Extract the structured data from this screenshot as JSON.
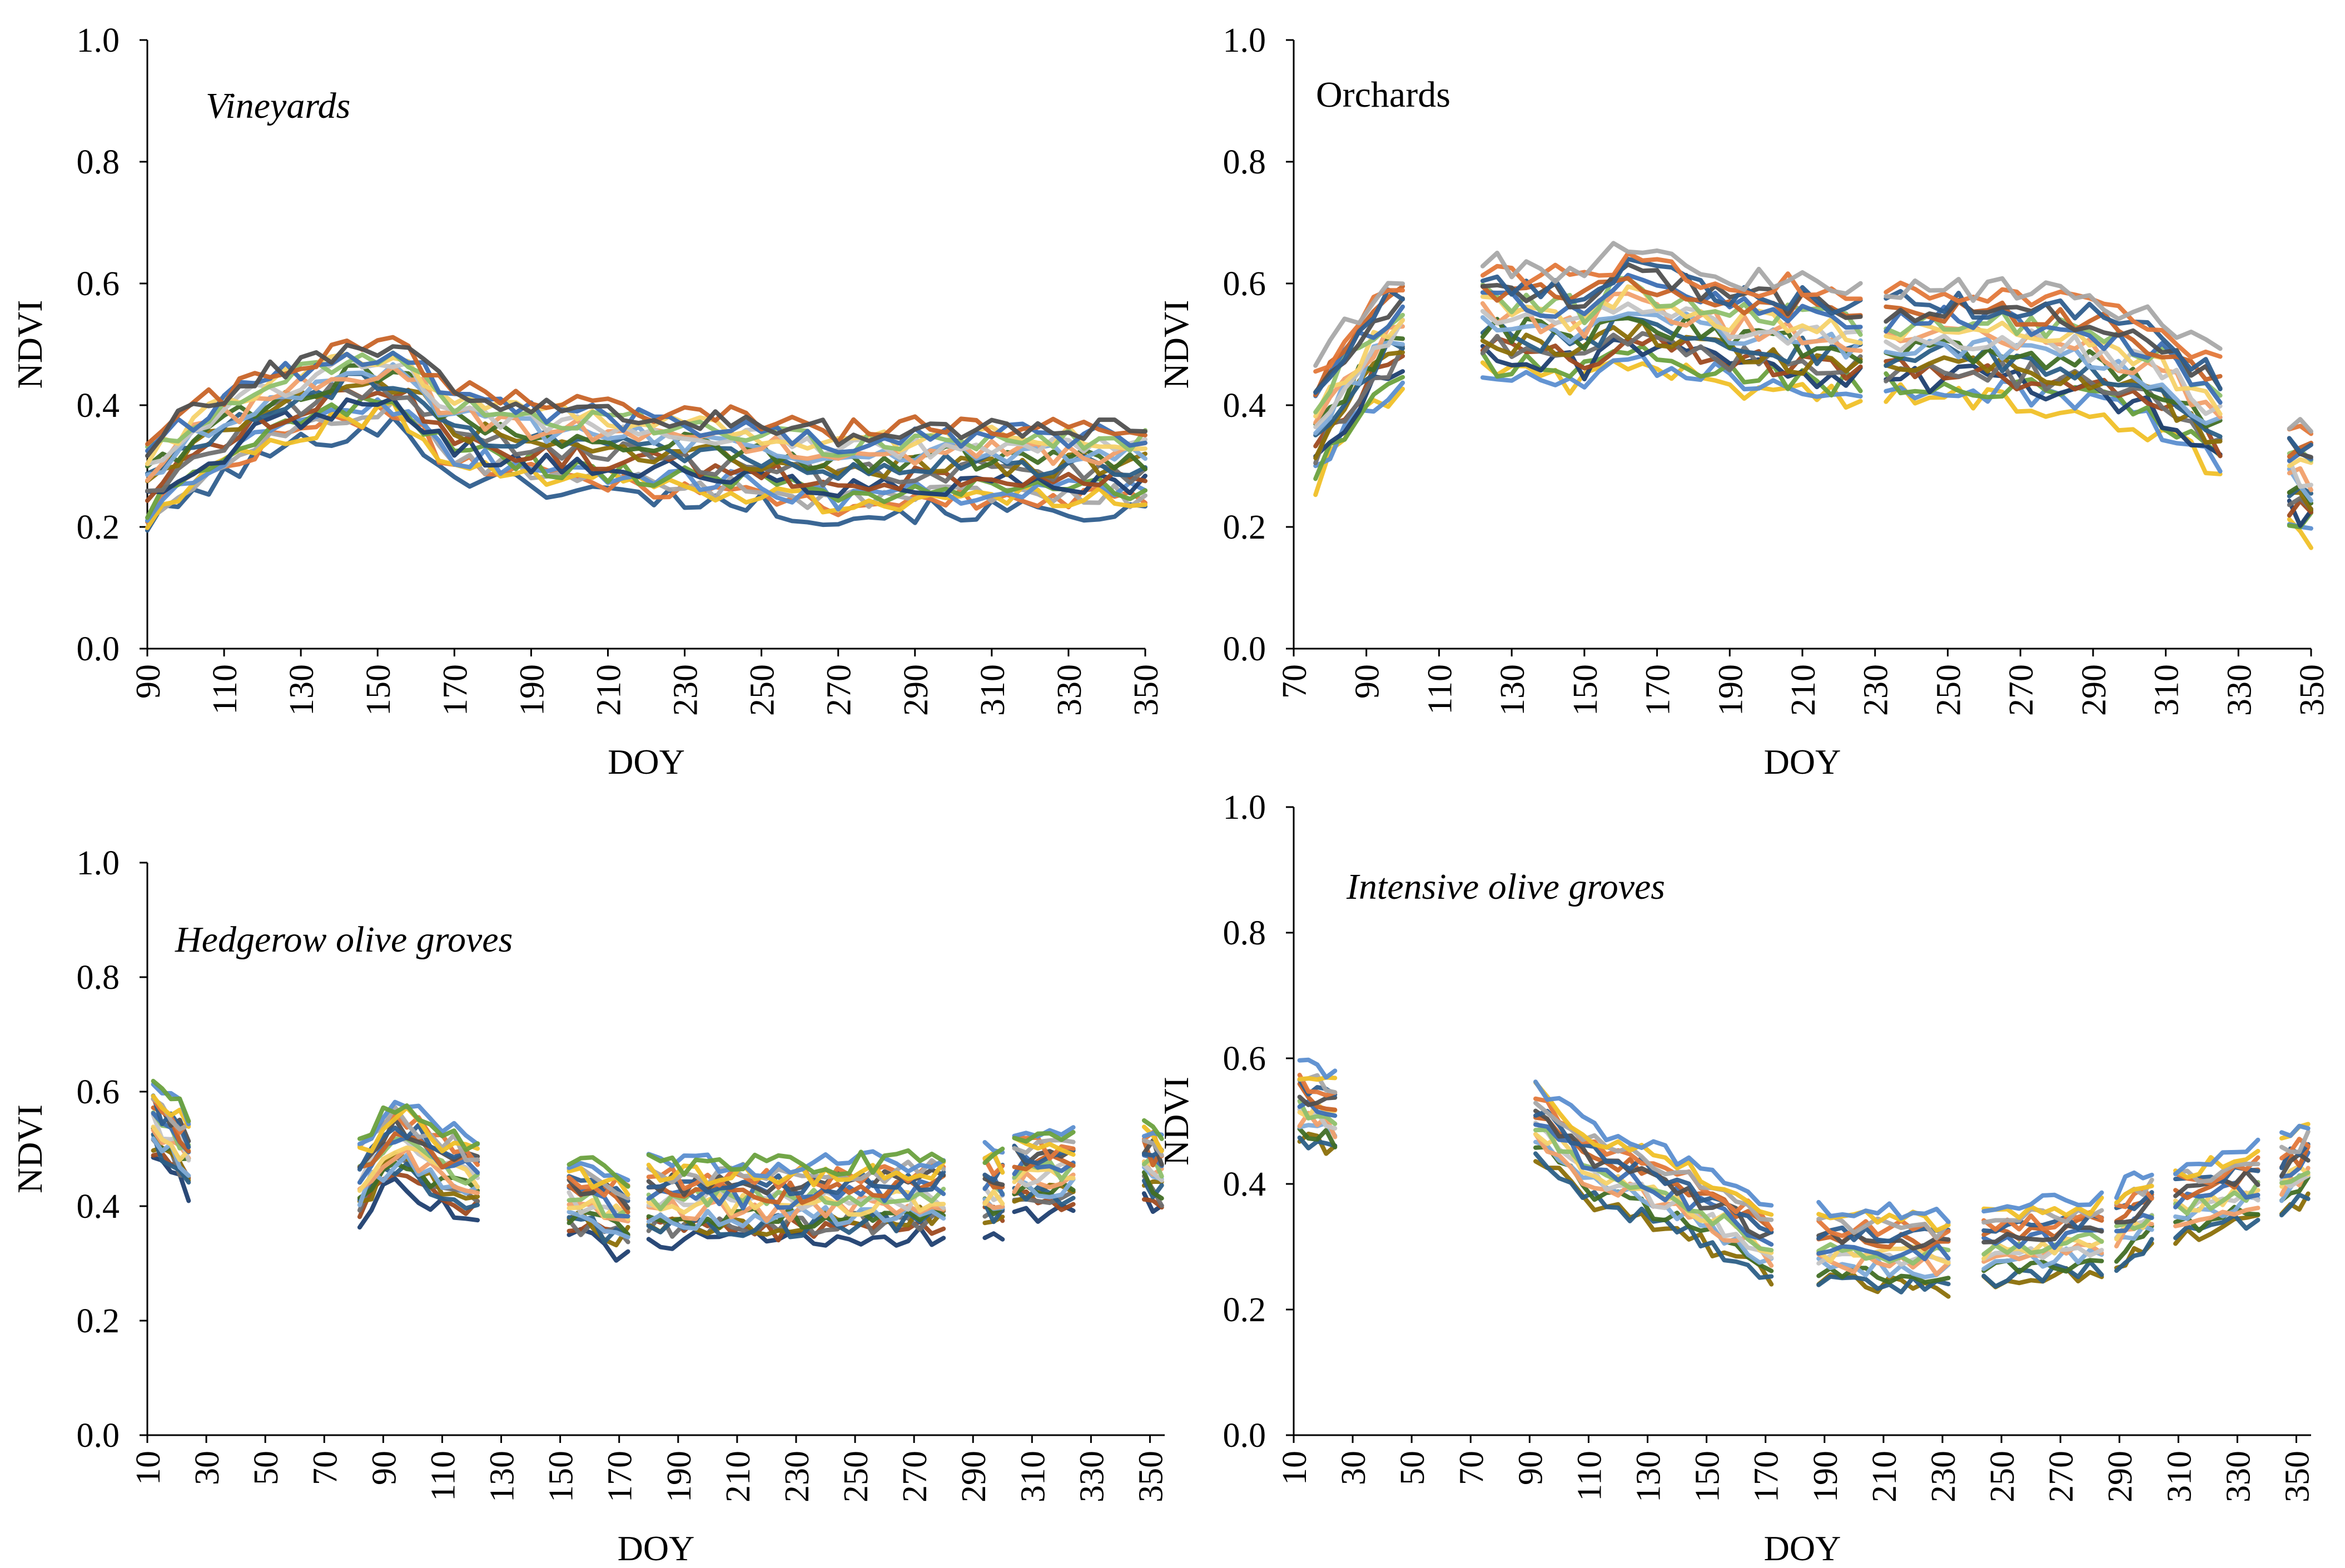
{
  "palette": [
    "#2f5e8e",
    "#e3783a",
    "#a8a8a8",
    "#f0c028",
    "#5b8ed0",
    "#6aa13e",
    "#1f3f70",
    "#9e4a20",
    "#6f6f6f",
    "#8b6f08",
    "#2c5f87",
    "#416e25",
    "#80abd9",
    "#f1a06c",
    "#c4c4c4",
    "#f5d26a",
    "#8fc06d",
    "#3d6fb3",
    "#c86428",
    "#505050"
  ],
  "chart_data": [
    {
      "type": "line",
      "title": "Vineyards",
      "title_italic": true,
      "xlabel": "DOY",
      "ylabel": "NDVI",
      "xlim": [
        90,
        350
      ],
      "ylim": [
        0,
        1.0
      ],
      "xticks": [
        "90",
        "110",
        "130",
        "150",
        "170",
        "190",
        "210",
        "230",
        "250",
        "270",
        "290",
        "310",
        "330",
        "350"
      ],
      "yticks": [
        "0.0",
        "0.2",
        "0.4",
        "0.6",
        "0.8",
        "1.0"
      ],
      "segments": [
        [
          90,
          350
        ]
      ],
      "profile": {
        "x": [
          90,
          100,
          120,
          140,
          155,
          170,
          190,
          210,
          230,
          250,
          270,
          290,
          310,
          330,
          350
        ],
        "y": [
          0.27,
          0.32,
          0.39,
          0.43,
          0.44,
          0.36,
          0.34,
          0.33,
          0.32,
          0.31,
          0.29,
          0.3,
          0.3,
          0.3,
          0.3
        ]
      },
      "series_count": 20,
      "spread": 0.07,
      "noise": 0.02
    },
    {
      "type": "line",
      "title": "Orchards",
      "title_italic": false,
      "xlabel": "DOY",
      "ylabel": "NDVI",
      "xlim": [
        70,
        350
      ],
      "ylim": [
        0,
        1.0
      ],
      "xticks": [
        "70",
        "90",
        "110",
        "130",
        "150",
        "170",
        "190",
        "210",
        "230",
        "250",
        "270",
        "290",
        "310",
        "330",
        "350"
      ],
      "yticks": [
        "0.0",
        "0.2",
        "0.4",
        "0.6",
        "0.8",
        "1.0"
      ],
      "segments": [
        [
          76,
          101
        ],
        [
          122,
          227
        ],
        [
          233,
          325
        ],
        [
          344,
          350
        ]
      ],
      "profile": {
        "x": [
          76,
          90,
          101,
          122,
          150,
          160,
          190,
          210,
          227,
          233,
          260,
          290,
          310,
          325,
          344,
          350
        ],
        "y": [
          0.36,
          0.48,
          0.53,
          0.54,
          0.52,
          0.56,
          0.52,
          0.51,
          0.5,
          0.5,
          0.5,
          0.48,
          0.44,
          0.38,
          0.28,
          0.27
        ]
      },
      "series_count": 20,
      "spread": 0.09,
      "noise": 0.022
    },
    {
      "type": "line",
      "title": "Hedgerow olive groves",
      "title_italic": true,
      "xlabel": "DOY",
      "ylabel": "NDVI",
      "xlim": [
        10,
        355
      ],
      "ylim": [
        0,
        1.0
      ],
      "xticks": [
        "10",
        "30",
        "50",
        "70",
        "90",
        "110",
        "130",
        "150",
        "170",
        "190",
        "210",
        "230",
        "250",
        "270",
        "290",
        "310",
        "330",
        "350"
      ],
      "yticks": [
        "0.0",
        "0.2",
        "0.4",
        "0.6",
        "0.8",
        "1.0"
      ],
      "segments": [
        [
          12,
          25
        ],
        [
          82,
          122
        ],
        [
          153,
          175
        ],
        [
          180,
          280
        ],
        [
          294,
          300
        ],
        [
          304,
          324
        ],
        [
          348,
          355
        ]
      ],
      "profile": {
        "x": [
          12,
          25,
          82,
          95,
          110,
          122,
          153,
          175,
          180,
          230,
          280,
          294,
          300,
          304,
          324,
          348,
          355
        ],
        "y": [
          0.55,
          0.49,
          0.45,
          0.52,
          0.47,
          0.45,
          0.42,
          0.38,
          0.41,
          0.41,
          0.42,
          0.43,
          0.43,
          0.46,
          0.46,
          0.48,
          0.46
        ]
      },
      "series_count": 20,
      "spread": 0.065,
      "noise": 0.02
    },
    {
      "type": "line",
      "title": "Intensive olive groves",
      "title_italic": true,
      "xlabel": "DOY",
      "ylabel": "NDVI",
      "xlim": [
        10,
        355
      ],
      "ylim": [
        0,
        1.0
      ],
      "xticks": [
        "10",
        "30",
        "50",
        "70",
        "90",
        "110",
        "130",
        "150",
        "170",
        "190",
        "210",
        "230",
        "250",
        "270",
        "290",
        "310",
        "330",
        "350"
      ],
      "yticks": [
        "0.0",
        "0.2",
        "0.4",
        "0.6",
        "0.8",
        "1.0"
      ],
      "segments": [
        [
          12,
          25
        ],
        [
          92,
          175
        ],
        [
          188,
          232
        ],
        [
          244,
          284
        ],
        [
          289,
          302
        ],
        [
          309,
          340
        ],
        [
          345,
          355
        ]
      ],
      "profile": {
        "x": [
          12,
          25,
          92,
          110,
          130,
          150,
          175,
          188,
          232,
          244,
          284,
          289,
          302,
          309,
          340,
          345,
          355
        ],
        "y": [
          0.53,
          0.51,
          0.5,
          0.43,
          0.4,
          0.36,
          0.3,
          0.3,
          0.29,
          0.3,
          0.32,
          0.33,
          0.36,
          0.37,
          0.4,
          0.41,
          0.44
        ]
      },
      "series_count": 16,
      "spread": 0.055,
      "noise": 0.015
    }
  ]
}
